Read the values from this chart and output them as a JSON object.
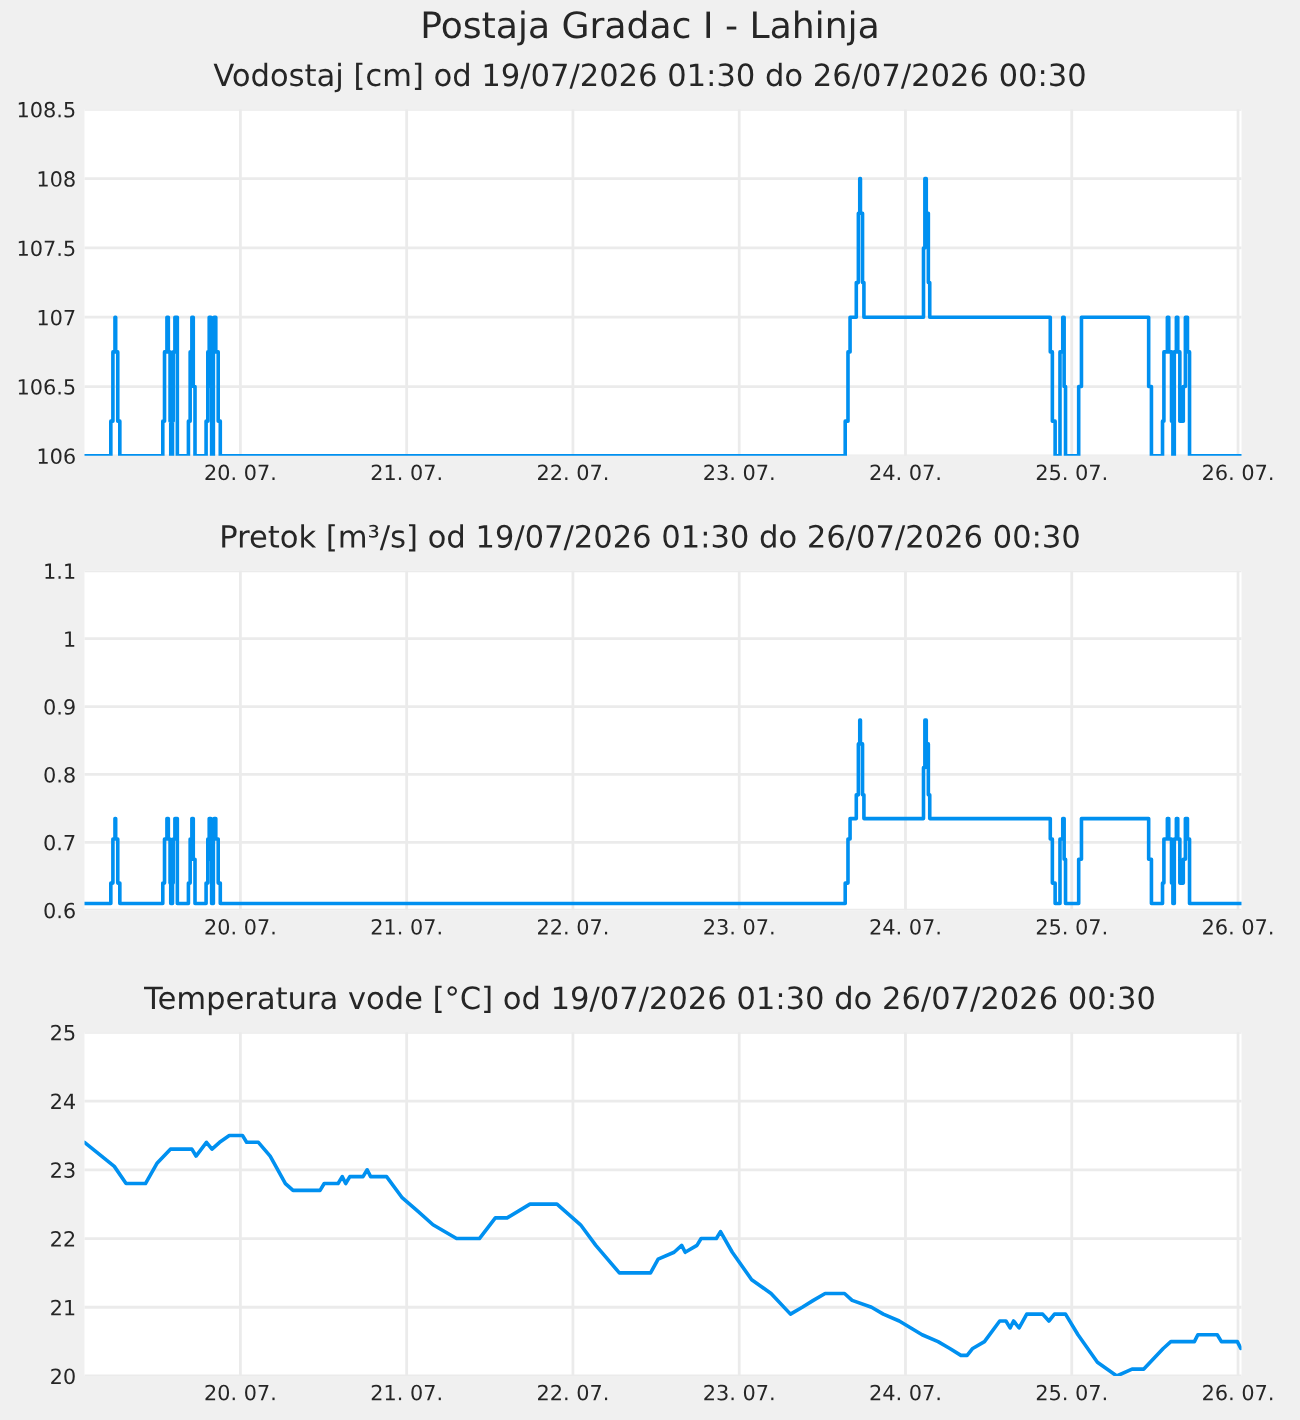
{
  "chart_data": [
    {
      "type": "step",
      "title": "Postaja Gradac I - Lahinja",
      "subtitle": "Vodostaj [cm] od 19/07/2026 01:30 do 26/07/2026 00:30",
      "x": [
        "2026-07-19T01:30",
        "2026-07-19T05:18",
        "2026-07-19T05:36",
        "2026-07-19T05:54",
        "2026-07-19T06:00",
        "2026-07-19T06:18",
        "2026-07-19T06:36",
        "2026-07-19T12:48",
        "2026-07-19T13:03",
        "2026-07-19T13:24",
        "2026-07-19T13:36",
        "2026-07-19T13:51",
        "2026-07-19T13:57",
        "2026-07-19T14:12",
        "2026-07-19T14:18",
        "2026-07-19T14:33",
        "2026-07-19T14:54",
        "2026-07-19T16:30",
        "2026-07-19T16:45",
        "2026-07-19T17:00",
        "2026-07-19T17:12",
        "2026-07-19T17:27",
        "2026-07-19T19:03",
        "2026-07-19T19:18",
        "2026-07-19T19:30",
        "2026-07-19T19:45",
        "2026-07-19T19:51",
        "2026-07-19T20:06",
        "2026-07-19T20:12",
        "2026-07-19T20:27",
        "2026-07-19T20:48",
        "2026-07-19T21:06",
        "2026-07-23T15:18",
        "2026-07-23T15:42",
        "2026-07-23T16:00",
        "2026-07-23T16:54",
        "2026-07-23T17:12",
        "2026-07-23T17:24",
        "2026-07-23T17:30",
        "2026-07-23T17:48",
        "2026-07-23T18:00",
        "2026-07-24T02:36",
        "2026-07-24T02:48",
        "2026-07-24T03:00",
        "2026-07-24T03:18",
        "2026-07-24T03:30",
        "2026-07-24T20:54",
        "2026-07-24T21:12",
        "2026-07-24T21:36",
        "2026-07-24T22:18",
        "2026-07-24T22:42",
        "2026-07-24T22:54",
        "2026-07-24T23:06",
        "2026-07-25T01:00",
        "2026-07-25T01:24",
        "2026-07-25T11:06",
        "2026-07-25T11:30",
        "2026-07-25T13:06",
        "2026-07-25T13:18",
        "2026-07-25T13:48",
        "2026-07-25T14:00",
        "2026-07-25T14:24",
        "2026-07-25T14:36",
        "2026-07-25T14:48",
        "2026-07-25T15:06",
        "2026-07-25T15:18",
        "2026-07-25T15:36",
        "2026-07-25T16:06",
        "2026-07-25T16:24",
        "2026-07-25T16:42",
        "2026-07-25T17:00",
        "2026-07-26T00:30"
      ],
      "series": [
        {
          "color": "#0090f0",
          "values": [
            106,
            106.25,
            106.75,
            107,
            106.75,
            106.25,
            106,
            106.25,
            106.75,
            107,
            106.75,
            106.25,
            106,
            106.25,
            106.75,
            107,
            106,
            106.25,
            106.75,
            107,
            106.5,
            106,
            106.25,
            106.75,
            107,
            106.5,
            106,
            106.75,
            107,
            106.75,
            106.25,
            106,
            106.25,
            106.75,
            107,
            107.25,
            107.75,
            108,
            107.75,
            107.25,
            107,
            107.5,
            108,
            107.75,
            107.25,
            107,
            106.75,
            106.25,
            106,
            106.75,
            107,
            106.5,
            106,
            106.5,
            107,
            106.5,
            106,
            106.25,
            106.75,
            107,
            106.75,
            106.25,
            106,
            106.75,
            107,
            106.75,
            106.25,
            106.5,
            107,
            106.75,
            106,
            106
          ]
        }
      ],
      "xlim": [
        "2026-07-19T01:30",
        "2026-07-26T00:30"
      ],
      "ylim": [
        106,
        108.5
      ],
      "yticks": [
        106,
        106.5,
        107,
        107.5,
        108,
        108.5
      ],
      "xticks": [
        {
          "value": "2026-07-20",
          "label": "20. 07."
        },
        {
          "value": "2026-07-21",
          "label": "21. 07."
        },
        {
          "value": "2026-07-22",
          "label": "22. 07."
        },
        {
          "value": "2026-07-23",
          "label": "23. 07."
        },
        {
          "value": "2026-07-24",
          "label": "24. 07."
        },
        {
          "value": "2026-07-25",
          "label": "25. 07."
        },
        {
          "value": "2026-07-26",
          "label": "26. 07."
        }
      ],
      "grid": true,
      "line_style": "solid"
    },
    {
      "type": "step",
      "title": "Pretok [m³/s] od 19/07/2026 01:30 do 26/07/2026 00:30",
      "x": [
        "2026-07-19T01:30",
        "2026-07-19T05:18",
        "2026-07-19T05:36",
        "2026-07-19T05:54",
        "2026-07-19T06:00",
        "2026-07-19T06:18",
        "2026-07-19T06:36",
        "2026-07-19T12:48",
        "2026-07-19T13:03",
        "2026-07-19T13:24",
        "2026-07-19T13:36",
        "2026-07-19T13:51",
        "2026-07-19T13:57",
        "2026-07-19T14:12",
        "2026-07-19T14:18",
        "2026-07-19T14:33",
        "2026-07-19T14:54",
        "2026-07-19T16:30",
        "2026-07-19T16:45",
        "2026-07-19T17:00",
        "2026-07-19T17:12",
        "2026-07-19T17:27",
        "2026-07-19T19:03",
        "2026-07-19T19:18",
        "2026-07-19T19:30",
        "2026-07-19T19:45",
        "2026-07-19T19:51",
        "2026-07-19T20:06",
        "2026-07-19T20:12",
        "2026-07-19T20:27",
        "2026-07-19T20:48",
        "2026-07-19T21:06",
        "2026-07-23T15:18",
        "2026-07-23T15:42",
        "2026-07-23T16:00",
        "2026-07-23T16:54",
        "2026-07-23T17:12",
        "2026-07-23T17:24",
        "2026-07-23T17:30",
        "2026-07-23T17:48",
        "2026-07-23T18:00",
        "2026-07-24T02:36",
        "2026-07-24T02:48",
        "2026-07-24T03:00",
        "2026-07-24T03:18",
        "2026-07-24T03:30",
        "2026-07-24T20:54",
        "2026-07-24T21:12",
        "2026-07-24T21:36",
        "2026-07-24T22:18",
        "2026-07-24T22:42",
        "2026-07-24T22:54",
        "2026-07-24T23:06",
        "2026-07-25T01:00",
        "2026-07-25T01:24",
        "2026-07-25T11:06",
        "2026-07-25T11:30",
        "2026-07-25T13:06",
        "2026-07-25T13:18",
        "2026-07-25T13:48",
        "2026-07-25T14:00",
        "2026-07-25T14:24",
        "2026-07-25T14:36",
        "2026-07-25T14:48",
        "2026-07-25T15:06",
        "2026-07-25T15:18",
        "2026-07-25T15:36",
        "2026-07-25T16:06",
        "2026-07-25T16:24",
        "2026-07-25T16:42",
        "2026-07-25T17:00",
        "2026-07-26T00:30"
      ],
      "series": [
        {
          "color": "#0090f0",
          "values": [
            0.61,
            0.64,
            0.705,
            0.735,
            0.705,
            0.64,
            0.61,
            0.64,
            0.705,
            0.735,
            0.705,
            0.64,
            0.61,
            0.64,
            0.705,
            0.735,
            0.61,
            0.64,
            0.705,
            0.735,
            0.675,
            0.61,
            0.64,
            0.705,
            0.735,
            0.675,
            0.61,
            0.705,
            0.735,
            0.705,
            0.64,
            0.61,
            0.64,
            0.705,
            0.735,
            0.77,
            0.845,
            0.88,
            0.845,
            0.77,
            0.735,
            0.81,
            0.88,
            0.845,
            0.77,
            0.735,
            0.705,
            0.64,
            0.61,
            0.705,
            0.735,
            0.675,
            0.61,
            0.675,
            0.735,
            0.675,
            0.61,
            0.64,
            0.705,
            0.735,
            0.705,
            0.64,
            0.61,
            0.705,
            0.735,
            0.705,
            0.64,
            0.675,
            0.735,
            0.705,
            0.61,
            0.61
          ]
        }
      ],
      "xlim": [
        "2026-07-19T01:30",
        "2026-07-26T00:30"
      ],
      "ylim": [
        0.6,
        1.1
      ],
      "yticks": [
        0.6,
        0.7,
        0.8,
        0.9,
        1,
        1.1
      ],
      "xticks": [
        {
          "value": "2026-07-20",
          "label": "20. 07."
        },
        {
          "value": "2026-07-21",
          "label": "21. 07."
        },
        {
          "value": "2026-07-22",
          "label": "22. 07."
        },
        {
          "value": "2026-07-23",
          "label": "23. 07."
        },
        {
          "value": "2026-07-24",
          "label": "24. 07."
        },
        {
          "value": "2026-07-25",
          "label": "25. 07."
        },
        {
          "value": "2026-07-26",
          "label": "26. 07."
        }
      ],
      "grid": true,
      "line_style": "solid"
    },
    {
      "type": "line",
      "title": "Temperatura vode [°C] od 19/07/2026 01:30 do 26/07/2026 00:30",
      "x": [
        "2026-07-19T01:30",
        "2026-07-19T05:48",
        "2026-07-19T07:30",
        "2026-07-19T10:18",
        "2026-07-19T12:00",
        "2026-07-19T13:54",
        "2026-07-19T17:00",
        "2026-07-19T17:36",
        "2026-07-19T19:06",
        "2026-07-19T19:54",
        "2026-07-19T21:00",
        "2026-07-19T22:24",
        "2026-07-20T00:18",
        "2026-07-20T00:54",
        "2026-07-20T02:36",
        "2026-07-20T04:18",
        "2026-07-20T06:30",
        "2026-07-20T07:36",
        "2026-07-20T11:30",
        "2026-07-20T12:06",
        "2026-07-20T14:06",
        "2026-07-20T14:42",
        "2026-07-20T15:12",
        "2026-07-20T15:48",
        "2026-07-20T17:42",
        "2026-07-20T18:18",
        "2026-07-20T18:48",
        "2026-07-20T21:06",
        "2026-07-20T23:18",
        "2026-07-21T01:36",
        "2026-07-21T03:48",
        "2026-07-21T07:12",
        "2026-07-21T10:30",
        "2026-07-21T12:48",
        "2026-07-21T14:30",
        "2026-07-21T17:48",
        "2026-07-21T21:42",
        "2026-07-22T01:06",
        "2026-07-22T03:18",
        "2026-07-22T06:42",
        "2026-07-22T11:12",
        "2026-07-22T12:18",
        "2026-07-22T14:36",
        "2026-07-22T15:42",
        "2026-07-22T16:12",
        "2026-07-22T17:54",
        "2026-07-22T18:30",
        "2026-07-22T20:42",
        "2026-07-22T21:18",
        "2026-07-22T23:00",
        "2026-07-23T01:48",
        "2026-07-23T04:36",
        "2026-07-23T07:24",
        "2026-07-23T09:06",
        "2026-07-23T10:42",
        "2026-07-23T12:24",
        "2026-07-23T15:12",
        "2026-07-23T16:18",
        "2026-07-23T19:06",
        "2026-07-23T20:48",
        "2026-07-23T23:06",
        "2026-07-24T02:24",
        "2026-07-24T04:42",
        "2026-07-24T06:24",
        "2026-07-24T08:00",
        "2026-07-24T08:54",
        "2026-07-24T09:42",
        "2026-07-24T11:24",
        "2026-07-24T13:36",
        "2026-07-24T14:30",
        "2026-07-24T15:06",
        "2026-07-24T15:36",
        "2026-07-24T16:24",
        "2026-07-24T17:30",
        "2026-07-24T19:48",
        "2026-07-24T20:42",
        "2026-07-24T21:30",
        "2026-07-24T23:06",
        "2026-07-25T00:54",
        "2026-07-25T03:42",
        "2026-07-25T06:30",
        "2026-07-25T08:42",
        "2026-07-25T10:24",
        "2026-07-25T13:12",
        "2026-07-25T14:18",
        "2026-07-25T17:42",
        "2026-07-25T18:12",
        "2026-07-25T21:00",
        "2026-07-25T21:36",
        "2026-07-25T23:54",
        "2026-07-26T00:24"
      ],
      "series": [
        {
          "color": "#0090f0",
          "values": [
            23.4,
            23.05,
            22.8,
            22.8,
            23.1,
            23.3,
            23.3,
            23.2,
            23.4,
            23.3,
            23.4,
            23.5,
            23.5,
            23.4,
            23.4,
            23.2,
            22.8,
            22.7,
            22.7,
            22.8,
            22.8,
            22.9,
            22.8,
            22.9,
            22.9,
            23.0,
            22.9,
            22.9,
            22.6,
            22.4,
            22.2,
            22.0,
            22.0,
            22.3,
            22.3,
            22.5,
            22.5,
            22.2,
            21.9,
            21.5,
            21.5,
            21.7,
            21.8,
            21.9,
            21.8,
            21.9,
            22.0,
            22.0,
            22.1,
            21.8,
            21.4,
            21.2,
            20.9,
            21.0,
            21.1,
            21.2,
            21.2,
            21.1,
            21.0,
            20.9,
            20.8,
            20.6,
            20.5,
            20.4,
            20.3,
            20.3,
            20.4,
            20.5,
            20.8,
            20.8,
            20.7,
            20.8,
            20.7,
            20.9,
            20.9,
            20.8,
            20.9,
            20.9,
            20.6,
            20.2,
            20.0,
            20.1,
            20.1,
            20.4,
            20.5,
            20.5,
            20.6,
            20.6,
            20.5,
            20.5,
            20.4
          ]
        }
      ],
      "xlim": [
        "2026-07-19T01:30",
        "2026-07-26T00:30"
      ],
      "ylim": [
        20,
        25
      ],
      "yticks": [
        20,
        21,
        22,
        23,
        24,
        25
      ],
      "xticks": [
        {
          "value": "2026-07-20",
          "label": "20. 07."
        },
        {
          "value": "2026-07-21",
          "label": "21. 07."
        },
        {
          "value": "2026-07-22",
          "label": "22. 07."
        },
        {
          "value": "2026-07-23",
          "label": "23. 07."
        },
        {
          "value": "2026-07-24",
          "label": "24. 07."
        },
        {
          "value": "2026-07-25",
          "label": "25. 07."
        },
        {
          "value": "2026-07-26",
          "label": "26. 07."
        }
      ],
      "grid": true,
      "line_style": "solid"
    }
  ]
}
